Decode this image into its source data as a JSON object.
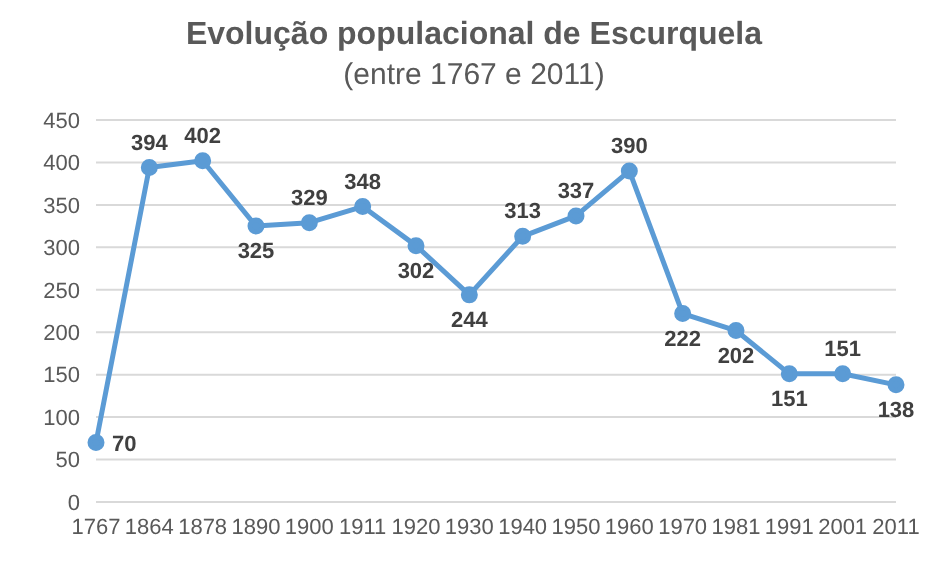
{
  "chart_data": {
    "type": "line",
    "title": "Evolução populacional de Escurquela",
    "subtitle": "(entre 1767 e 2011)",
    "categories": [
      "1767",
      "1864",
      "1878",
      "1890",
      "1900",
      "1911",
      "1920",
      "1930",
      "1940",
      "1950",
      "1960",
      "1970",
      "1981",
      "1991",
      "2001",
      "2011"
    ],
    "series": [
      {
        "color": "#5b9bd5",
        "values": [
          70,
          394,
          402,
          325,
          329,
          348,
          302,
          244,
          313,
          337,
          390,
          222,
          202,
          151,
          151,
          138
        ]
      }
    ],
    "ylim": [
      0,
      450
    ],
    "yticks": [
      0,
      50,
      100,
      150,
      200,
      250,
      300,
      350,
      400,
      450
    ],
    "grid": "y",
    "legend": false,
    "marker": "circle",
    "line_style": "solid",
    "data_labels": true
  }
}
